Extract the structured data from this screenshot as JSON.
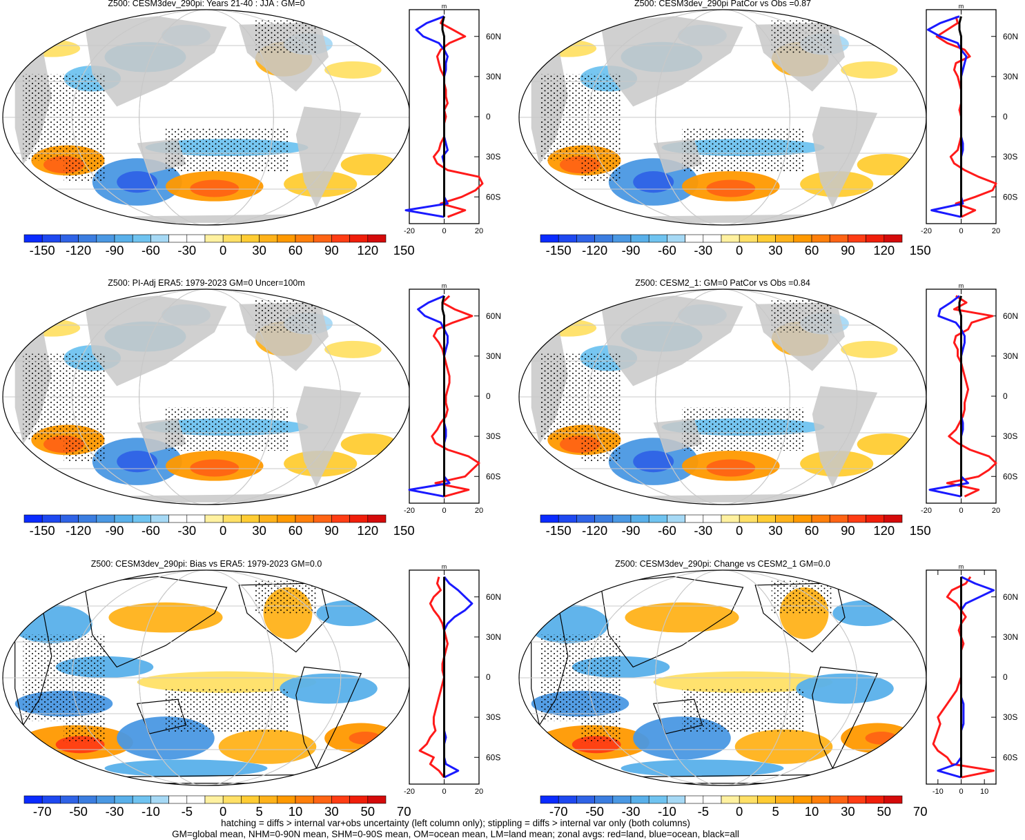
{
  "figure": {
    "footer_line1": "hatching = diffs > internal var+obs uncertainty (left column only); stippling = diffs > internal var only (both columns)",
    "footer_line2": "GM=global mean, NHM=0-90N mean, SHM=0-90S mean, OM=ocean mean, LM=land mean; zonal avgs: red=land, blue=ocean, black=all"
  },
  "colors": {
    "land": "#c8c8c8",
    "land_line": "#ff1a1a",
    "ocean_line": "#1a1aff",
    "all_line": "#000000",
    "scale": [
      "#0a2bff",
      "#1e48f0",
      "#2f63e6",
      "#3b7de0",
      "#4a98e3",
      "#59b0ea",
      "#6fc3f0",
      "#a6d9f5",
      "#ffffff",
      "#ffffff",
      "#fff1a0",
      "#ffe066",
      "#ffcc33",
      "#ffb21a",
      "#ff9900",
      "#ff7f0a",
      "#ff6414",
      "#ff3d14",
      "#f01e0a",
      "#d40a0a"
    ]
  },
  "chart_data": [
    {
      "type": "map",
      "title": "Z500: CESM3dev_290pi: Years 21-40 : JJA : GM=0",
      "colorbar_ticks": [
        "-150",
        "-120",
        "-90",
        "-60",
        "-30",
        "0",
        "30",
        "60",
        "90",
        "120",
        "150"
      ],
      "zonal_profile": {
        "units": "m",
        "xlim": [
          -20,
          20
        ],
        "xticks": [
          "-20",
          "0",
          "20"
        ],
        "yticks": [
          "60N",
          "30N",
          "0",
          "30S",
          "60S"
        ],
        "lat": [
          75,
          70,
          65,
          60,
          55,
          50,
          45,
          40,
          35,
          30,
          25,
          20,
          15,
          10,
          5,
          0,
          -5,
          -10,
          -15,
          -20,
          -25,
          -30,
          -35,
          -40,
          -45,
          -50,
          -55,
          -60,
          -65,
          -70,
          -75
        ],
        "land": [
          0,
          -2,
          5,
          12,
          3,
          -2,
          -4,
          -3,
          -2,
          0,
          0,
          1,
          1,
          2,
          0,
          1,
          0,
          0,
          0,
          -2,
          -3,
          -6,
          -4,
          2,
          20,
          22,
          18,
          10,
          -2,
          12,
          2
        ],
        "ocean": [
          0,
          -10,
          -16,
          -12,
          -3,
          0,
          2,
          1,
          1,
          0,
          0,
          0,
          0,
          0,
          0,
          0,
          0,
          0,
          0,
          1,
          2,
          -1,
          0,
          0,
          0,
          0,
          0,
          0,
          2,
          -22,
          0
        ],
        "all": [
          0,
          -1,
          -1,
          0,
          0,
          0,
          0,
          0,
          0,
          0,
          0,
          0,
          0,
          0,
          0,
          0,
          0,
          0,
          0,
          0,
          0,
          0,
          0,
          0,
          0,
          0,
          0,
          0,
          0,
          0,
          0
        ]
      }
    },
    {
      "type": "map",
      "title": "Z500: CESM3dev_290pi PatCor vs Obs =0.87",
      "colorbar_ticks": [
        "-150",
        "-120",
        "-90",
        "-60",
        "-30",
        "0",
        "30",
        "60",
        "90",
        "120",
        "150"
      ],
      "zonal_profile": {
        "units": "m",
        "xlim": [
          -20,
          20
        ],
        "xticks": [
          "-20",
          "0",
          "20"
        ],
        "yticks": [
          "60N",
          "30N",
          "0",
          "30S",
          "60S"
        ],
        "lat": [
          75,
          70,
          65,
          60,
          55,
          50,
          45,
          40,
          35,
          30,
          25,
          20,
          15,
          10,
          5,
          0,
          -5,
          -10,
          -15,
          -20,
          -25,
          -30,
          -35,
          -40,
          -45,
          -50,
          -55,
          -60,
          -65,
          -70,
          -75
        ],
        "land": [
          -3,
          -2,
          -8,
          -14,
          -8,
          2,
          5,
          -3,
          -4,
          -2,
          -1,
          0,
          0,
          0,
          -1,
          0,
          0,
          0,
          0,
          -1,
          -2,
          -6,
          -4,
          2,
          10,
          20,
          18,
          8,
          -3,
          8,
          0
        ],
        "ocean": [
          -1,
          -12,
          -19,
          -12,
          -2,
          0,
          3,
          2,
          1,
          0,
          0,
          0,
          0,
          0,
          0,
          0,
          0,
          0,
          0,
          1,
          1,
          0,
          0,
          0,
          0,
          0,
          0,
          0,
          1,
          -17,
          0
        ],
        "all": [
          0,
          -1,
          -1,
          0,
          0,
          0,
          0,
          0,
          0,
          0,
          0,
          0,
          0,
          0,
          0,
          0,
          0,
          0,
          0,
          0,
          0,
          0,
          0,
          0,
          0,
          0,
          0,
          0,
          0,
          0,
          0
        ]
      }
    },
    {
      "type": "map",
      "title": "Z500: PI-Adj ERA5: 1979-2023 GM=0 Uncer=100m",
      "colorbar_ticks": [
        "-150",
        "-120",
        "-90",
        "-60",
        "-30",
        "0",
        "30",
        "60",
        "90",
        "120",
        "150"
      ],
      "zonal_profile": {
        "units": "m",
        "xlim": [
          -20,
          20
        ],
        "xticks": [
          "-20",
          "0",
          "20"
        ],
        "yticks": [
          "60N",
          "30N",
          "0",
          "30S",
          "60S"
        ],
        "lat": [
          75,
          70,
          65,
          60,
          55,
          50,
          45,
          40,
          35,
          30,
          25,
          20,
          15,
          10,
          5,
          0,
          -5,
          -10,
          -15,
          -20,
          -25,
          -30,
          -35,
          -40,
          -45,
          -50,
          -55,
          -60,
          -65,
          -70,
          -75
        ],
        "land": [
          3,
          -1,
          6,
          16,
          5,
          -4,
          -6,
          -3,
          -1,
          0,
          1,
          2,
          3,
          3,
          2,
          1,
          1,
          2,
          1,
          -2,
          -4,
          -7,
          -5,
          2,
          14,
          20,
          16,
          12,
          -5,
          14,
          0
        ],
        "ocean": [
          0,
          -9,
          -15,
          -11,
          -2,
          0,
          2,
          2,
          1,
          0,
          0,
          0,
          0,
          0,
          0,
          0,
          0,
          0,
          0,
          0,
          1,
          1,
          0,
          0,
          0,
          0,
          0,
          0,
          3,
          -20,
          0
        ],
        "all": [
          0,
          -1,
          -1,
          0,
          0,
          0,
          0,
          0,
          0,
          0,
          0,
          0,
          0,
          0,
          0,
          0,
          0,
          0,
          0,
          0,
          0,
          0,
          0,
          0,
          0,
          0,
          0,
          0,
          0,
          0,
          0
        ]
      }
    },
    {
      "type": "map",
      "title": "Z500: CESM2_1: GM=0 PatCor vs Obs =0.84",
      "colorbar_ticks": [
        "-150",
        "-120",
        "-90",
        "-60",
        "-30",
        "0",
        "30",
        "60",
        "90",
        "120",
        "150"
      ],
      "zonal_profile": {
        "units": "m",
        "xlim": [
          -20,
          20
        ],
        "xticks": [
          "-20",
          "0",
          "20"
        ],
        "yticks": [
          "60N",
          "30N",
          "0",
          "30S",
          "60S"
        ],
        "lat": [
          75,
          70,
          65,
          60,
          55,
          50,
          45,
          40,
          35,
          30,
          25,
          20,
          15,
          10,
          5,
          0,
          -5,
          -10,
          -15,
          -20,
          -25,
          -30,
          -35,
          -40,
          -45,
          -50,
          -55,
          -60,
          -65,
          -70,
          -75
        ],
        "land": [
          -3,
          3,
          -4,
          18,
          6,
          4,
          -3,
          -4,
          -2,
          -2,
          0,
          1,
          2,
          3,
          4,
          3,
          2,
          2,
          1,
          -1,
          -3,
          -7,
          -2,
          5,
          16,
          20,
          16,
          10,
          -8,
          10,
          2
        ],
        "ocean": [
          -1,
          -6,
          -12,
          -13,
          -3,
          0,
          2,
          2,
          1,
          0,
          0,
          0,
          0,
          0,
          0,
          0,
          0,
          0,
          0,
          1,
          1,
          0,
          0,
          0,
          0,
          0,
          0,
          0,
          4,
          -18,
          0
        ],
        "all": [
          0,
          -1,
          -1,
          0,
          0,
          0,
          0,
          0,
          0,
          0,
          0,
          0,
          0,
          0,
          0,
          0,
          0,
          0,
          0,
          0,
          0,
          0,
          0,
          0,
          0,
          0,
          0,
          0,
          0,
          0,
          0
        ]
      }
    },
    {
      "type": "map",
      "title": "Z500: CESM3dev_290pi: Bias vs ERA5: 1979-2023 GM=0.0",
      "colorbar_ticks": [
        "-70",
        "-50",
        "-30",
        "-10",
        "-5",
        "0",
        "5",
        "10",
        "30",
        "50",
        "70"
      ],
      "zonal_profile": {
        "units": "m",
        "xlim": [
          -20,
          20
        ],
        "xticks": [
          "-20",
          "0",
          "20"
        ],
        "yticks": [
          "60N",
          "30N",
          "0",
          "30S",
          "60S"
        ],
        "lat": [
          75,
          70,
          65,
          60,
          55,
          50,
          45,
          40,
          35,
          30,
          25,
          20,
          15,
          10,
          5,
          0,
          -5,
          -10,
          -15,
          -20,
          -25,
          -30,
          -35,
          -40,
          -45,
          -50,
          -55,
          -60,
          -65,
          -70,
          -75
        ],
        "land": [
          -3,
          -4,
          -2,
          -6,
          -8,
          -6,
          -3,
          -1,
          0,
          1,
          2,
          1,
          0,
          -1,
          -1,
          0,
          -1,
          -2,
          -3,
          -4,
          -5,
          -6,
          -6,
          -5,
          -8,
          -10,
          -14,
          -6,
          -8,
          -3,
          0
        ],
        "ocean": [
          0,
          3,
          8,
          12,
          16,
          12,
          6,
          2,
          0,
          0,
          0,
          0,
          0,
          0,
          0,
          0,
          0,
          0,
          0,
          0,
          0,
          0,
          0,
          0,
          1,
          0,
          0,
          0,
          1,
          8,
          0
        ],
        "all": [
          0,
          0,
          0,
          0,
          0,
          0,
          0,
          0,
          0,
          0,
          0,
          0,
          0,
          0,
          0,
          0,
          0,
          0,
          0,
          0,
          0,
          0,
          0,
          0,
          0,
          0,
          0,
          0,
          0,
          0,
          0
        ]
      }
    },
    {
      "type": "map",
      "title": "Z500: CESM3dev_290pi: Change vs CESM2_1 GM=0.0",
      "colorbar_ticks": [
        "-70",
        "-50",
        "-30",
        "-10",
        "-5",
        "0",
        "5",
        "10",
        "30",
        "50",
        "70"
      ],
      "zonal_profile": {
        "units": "m",
        "xlim": [
          -15,
          15
        ],
        "xticks": [
          "-10",
          "0",
          "10"
        ],
        "yticks": [
          "60N",
          "30N",
          "0",
          "30S",
          "60S"
        ],
        "lat": [
          75,
          70,
          65,
          60,
          55,
          50,
          45,
          40,
          35,
          30,
          25,
          20,
          15,
          10,
          5,
          0,
          -5,
          -10,
          -15,
          -20,
          -25,
          -30,
          -35,
          -40,
          -45,
          -50,
          -55,
          -60,
          -65,
          -70,
          -75
        ],
        "land": [
          4,
          2,
          -4,
          -6,
          -2,
          0,
          2,
          0,
          -1,
          0,
          1,
          0,
          0,
          0,
          0,
          0,
          -1,
          -2,
          -4,
          -6,
          -8,
          -10,
          -9,
          -10,
          -11,
          -12,
          -10,
          -6,
          -4,
          14,
          0
        ],
        "ocean": [
          0,
          6,
          14,
          8,
          2,
          0,
          0,
          0,
          0,
          0,
          0,
          0,
          0,
          0,
          0,
          0,
          0,
          0,
          0,
          1,
          1,
          1,
          1,
          0,
          0,
          0,
          0,
          0,
          -2,
          -10,
          0
        ],
        "all": [
          0,
          0,
          0,
          0,
          0,
          0,
          0,
          0,
          0,
          0,
          0,
          0,
          0,
          0,
          0,
          0,
          0,
          0,
          0,
          0,
          0,
          0,
          0,
          0,
          0,
          0,
          0,
          0,
          0,
          0,
          0
        ]
      }
    }
  ]
}
